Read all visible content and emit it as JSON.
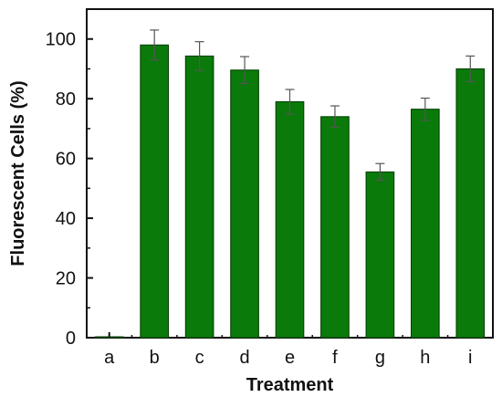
{
  "chart_data": {
    "type": "bar",
    "title": "",
    "xlabel": "Treatment",
    "ylabel": "Fluorescent Cells (%)",
    "categories": [
      "a",
      "b",
      "c",
      "d",
      "e",
      "f",
      "g",
      "h",
      "i"
    ],
    "values": [
      0.3,
      98,
      94.3,
      89.6,
      79,
      74,
      55.5,
      76.5,
      90
    ],
    "error": [
      0,
      5,
      4.8,
      4.5,
      4.1,
      3.6,
      2.8,
      3.7,
      4.3
    ],
    "ylim": [
      0,
      110
    ],
    "yticks": [
      0,
      20,
      40,
      60,
      80,
      100
    ],
    "bar_color": "#0a7a0a",
    "bar_edge_color": "#003d00",
    "error_color": "#555555",
    "grid": false,
    "legend": "none"
  }
}
